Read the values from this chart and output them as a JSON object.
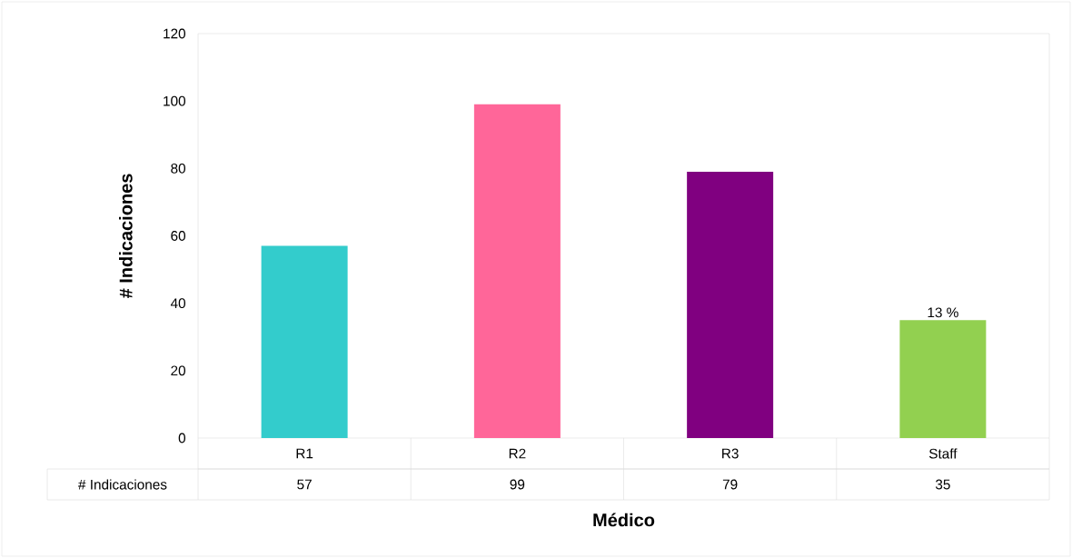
{
  "chart_data": {
    "type": "bar",
    "xlabel": "Médico",
    "ylabel": "# Indicaciones",
    "categories": [
      "R1",
      "R2",
      "R3",
      "Staff"
    ],
    "series": [
      {
        "name": "# Indicaciones",
        "colors": [
          "#33cccc",
          "#ff6699",
          "#800080",
          "#92d050"
        ],
        "values": [
          57,
          99,
          79,
          35
        ]
      }
    ],
    "ylim": [
      0,
      120
    ],
    "yticks": [
      0,
      20,
      40,
      60,
      80,
      100,
      120
    ],
    "data_labels": true,
    "grid": false,
    "annotations": [
      {
        "text": "13 %",
        "x": "Staff",
        "y": 35
      }
    ]
  }
}
